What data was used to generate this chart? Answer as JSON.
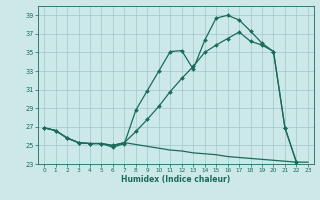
{
  "xlabel": "Humidex (Indice chaleur)",
  "bg_color": "#cde8e8",
  "grid_color": "#a0c8c8",
  "line_color": "#1a6b5a",
  "xlim": [
    -0.5,
    23.5
  ],
  "ylim": [
    23,
    40
  ],
  "yticks": [
    23,
    25,
    27,
    29,
    31,
    33,
    35,
    37,
    39
  ],
  "xticks": [
    0,
    1,
    2,
    3,
    4,
    5,
    6,
    7,
    8,
    9,
    10,
    11,
    12,
    13,
    14,
    15,
    16,
    17,
    18,
    19,
    20,
    21,
    22,
    23
  ],
  "line1_x": [
    0,
    1,
    2,
    3,
    4,
    5,
    6,
    7,
    8,
    9,
    10,
    11,
    12,
    13,
    14,
    15,
    16,
    17,
    18,
    19,
    20,
    21,
    22
  ],
  "line1_y": [
    26.9,
    26.6,
    25.8,
    25.3,
    25.2,
    25.2,
    24.8,
    25.2,
    28.8,
    30.9,
    33.0,
    35.1,
    35.2,
    33.2,
    36.3,
    38.7,
    39.0,
    38.5,
    37.3,
    36.0,
    35.1,
    26.9,
    23.2
  ],
  "line2_x": [
    0,
    1,
    2,
    3,
    4,
    5,
    6,
    7,
    8,
    9,
    10,
    11,
    12,
    13,
    14,
    15,
    16,
    17,
    18,
    19,
    20,
    21,
    22
  ],
  "line2_y": [
    26.9,
    26.6,
    25.8,
    25.3,
    25.2,
    25.2,
    25.0,
    25.3,
    26.5,
    27.8,
    29.2,
    30.8,
    32.2,
    33.5,
    35.0,
    35.8,
    36.5,
    37.2,
    36.2,
    35.8,
    35.1,
    26.9,
    23.2
  ],
  "line3_x": [
    0,
    1,
    2,
    3,
    4,
    5,
    6,
    7,
    8,
    9,
    10,
    11,
    12,
    13,
    14,
    15,
    16,
    17,
    18,
    19,
    20,
    21,
    22,
    23
  ],
  "line3_y": [
    26.9,
    26.6,
    25.8,
    25.3,
    25.2,
    25.2,
    25.0,
    25.3,
    25.1,
    24.9,
    24.7,
    24.5,
    24.4,
    24.2,
    24.1,
    24.0,
    23.8,
    23.7,
    23.6,
    23.5,
    23.4,
    23.3,
    23.2,
    23.2
  ]
}
